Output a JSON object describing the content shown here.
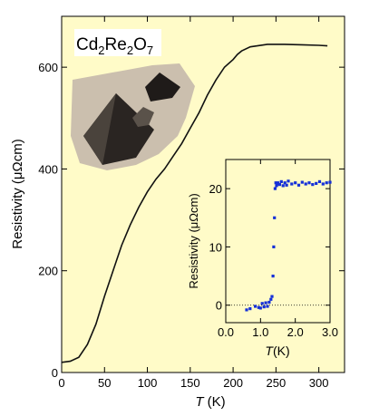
{
  "colors": {
    "panel_bg": "#fffbc8",
    "main_line": "#111111",
    "inset_points": "#1530d8",
    "photo_bg": "#cbbfae"
  },
  "chart_data": [
    {
      "type": "line",
      "title": "",
      "xlabel": "T (K)",
      "xlabel_parts": {
        "symbol": "T",
        "unit": "(K)"
      },
      "ylabel": "Resistivity (μΩcm)",
      "xlim": [
        0,
        330
      ],
      "ylim": [
        0,
        700
      ],
      "xticks": [
        0,
        50,
        100,
        150,
        200,
        250,
        300
      ],
      "yticks": [
        0,
        200,
        400,
        600
      ],
      "grid": false,
      "annotation": {
        "formula_parts": [
          "Cd",
          "2",
          "Re",
          "2",
          "O",
          "7"
        ],
        "photo": "photograph of two dark octahedral Cd2Re2O7 crystals"
      },
      "series": [
        {
          "x": [
            0,
            10,
            20,
            30,
            40,
            50,
            60,
            70,
            80,
            90,
            100,
            110,
            120,
            130,
            140,
            150,
            160,
            170,
            180,
            190,
            200,
            205,
            210,
            220,
            240,
            260,
            280,
            300,
            310
          ],
          "y": [
            20,
            22,
            30,
            55,
            95,
            150,
            200,
            250,
            290,
            325,
            355,
            380,
            400,
            425,
            450,
            480,
            510,
            545,
            575,
            600,
            615,
            625,
            632,
            640,
            645,
            645,
            644,
            643,
            642
          ]
        }
      ]
    },
    {
      "type": "scatter",
      "title": "",
      "xlabel": "T (K)",
      "xlabel_parts": {
        "symbol": "T",
        "unit": "(K)"
      },
      "ylabel": "Resistivity (μΩcm)",
      "xlim": [
        0,
        3
      ],
      "ylim": [
        -3,
        25
      ],
      "xticks": [
        0,
        1,
        2,
        3
      ],
      "xtick_labels": [
        "0.0",
        "1.0",
        "2.0",
        "3.0"
      ],
      "yticks": [
        0,
        10,
        20
      ],
      "reference_line_y": 0,
      "grid": false,
      "series": [
        {
          "x": [
            0.6,
            0.7,
            0.85,
            0.95,
            1.0,
            1.05,
            1.1,
            1.15,
            1.2,
            1.25,
            1.3,
            1.33,
            1.36,
            1.38,
            1.4,
            1.42,
            1.44,
            1.46,
            1.48,
            1.5,
            1.55,
            1.6,
            1.65,
            1.7,
            1.75,
            1.8,
            1.9,
            2.0,
            2.1,
            2.2,
            2.3,
            2.4,
            2.5,
            2.6,
            2.7,
            2.8,
            2.9,
            3.0
          ],
          "y": [
            -0.8,
            -0.6,
            -0.2,
            -0.4,
            -0.5,
            0.3,
            -0.3,
            0.4,
            -0.2,
            0.5,
            1.0,
            1.5,
            5.0,
            10.0,
            15.0,
            20.0,
            21.0,
            20.5,
            20.8,
            21.0,
            20.7,
            21.2,
            20.5,
            21.0,
            20.6,
            21.3,
            20.8,
            21.0,
            20.6,
            21.1,
            20.8,
            21.0,
            20.7,
            20.9,
            21.2,
            20.8,
            21.0,
            21.1
          ]
        }
      ]
    }
  ]
}
